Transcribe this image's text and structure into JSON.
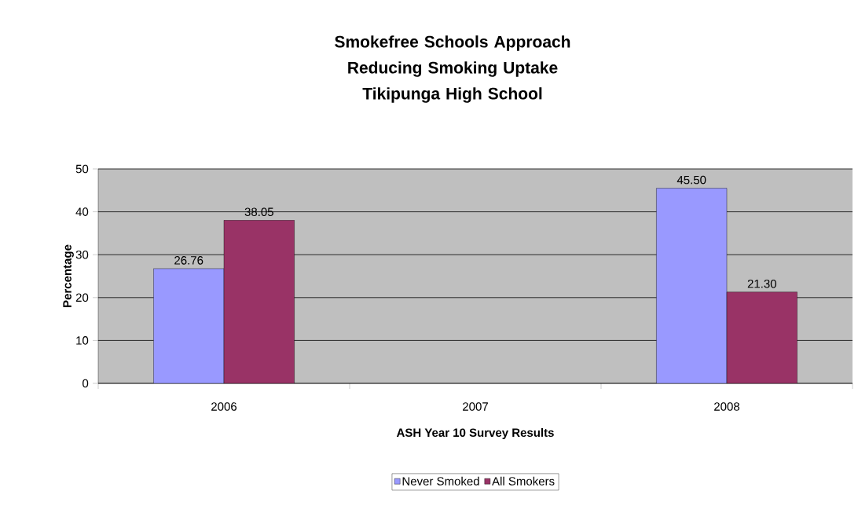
{
  "chart_data": {
    "type": "bar",
    "title": "Smokefree Schools Approach",
    "subtitle": "Reducing Smoking Uptake Tikipunga High School",
    "xlabel": "ASH Year 10 Survey Results",
    "ylabel": "Percentage",
    "categories": [
      "2006",
      "2007",
      "2008"
    ],
    "series": [
      {
        "name": "Never Smoked",
        "color": "#9999ff",
        "values": [
          26.76,
          null,
          45.5
        ],
        "value_labels": [
          "26.76",
          null,
          "45.50"
        ]
      },
      {
        "name": "All Smokers",
        "color": "#993366",
        "values": [
          38.05,
          null,
          21.3
        ],
        "value_labels": [
          "38.05",
          null,
          "21.30"
        ]
      }
    ],
    "ylim": [
      0,
      50
    ],
    "yticks": [
      0,
      10,
      20,
      30,
      40,
      50
    ],
    "grid": "y",
    "legend": "bottom"
  }
}
